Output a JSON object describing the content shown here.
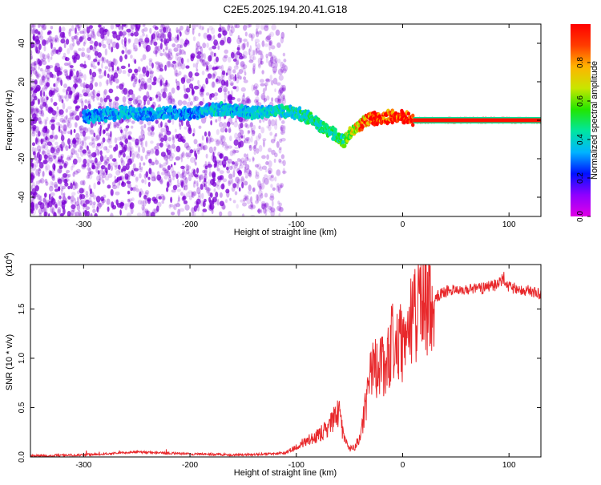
{
  "title": "C2E5.2025.194.20.41.G18",
  "colors": {
    "snr_line": "#e8282b",
    "frame": "#000000",
    "spectrogram_scatter": "#7b00d4",
    "colorbar_stops": [
      "#e100e6",
      "#8f00ff",
      "#0010ff",
      "#00b4ff",
      "#00e6a0",
      "#22e600",
      "#c8e600",
      "#ffb400",
      "#ff3c00",
      "#ff0000"
    ]
  },
  "chart_data": [
    {
      "type": "heatmap",
      "xlabel": "Height of straight line (km)",
      "ylabel": "Frequency (Hz)",
      "xlim": [
        -350,
        130
      ],
      "ylim": [
        -50,
        50
      ],
      "xticks": [
        -300,
        -200,
        -100,
        0,
        100
      ],
      "yticks": [
        -40,
        -20,
        0,
        20,
        40
      ],
      "xtick_labels": [
        "-300",
        "-200",
        "-100",
        "0",
        "100"
      ],
      "ytick_labels": [
        "-40",
        "-20",
        "0",
        "20",
        "40"
      ],
      "colorbar": {
        "label": "Normalized spectral amplitude",
        "range": [
          0,
          1
        ],
        "ticks": [
          "0.0",
          "0.2",
          "0.4",
          "0.6",
          "0.8"
        ],
        "tick_values": [
          0.0,
          0.2,
          0.4,
          0.6,
          0.8
        ]
      },
      "ridge": {
        "x": [
          -300,
          -280,
          -260,
          -240,
          -220,
          -200,
          -180,
          -160,
          -140,
          -120,
          -100,
          -90,
          -80,
          -70,
          -60,
          -55,
          -50,
          -45,
          -40,
          -35,
          -30,
          -20,
          -10,
          0,
          10,
          50,
          100,
          130
        ],
        "y": [
          2,
          3,
          4,
          3,
          4,
          3,
          6,
          5,
          4,
          5,
          4,
          2,
          -2,
          -5,
          -9,
          -11,
          -7,
          -5,
          -3,
          0,
          1,
          1,
          2,
          2,
          0,
          0,
          0,
          0
        ],
        "amplitude": [
          0.3,
          0.32,
          0.35,
          0.32,
          0.33,
          0.3,
          0.38,
          0.35,
          0.36,
          0.4,
          0.42,
          0.45,
          0.45,
          0.45,
          0.48,
          0.5,
          0.6,
          0.7,
          0.8,
          0.85,
          0.9,
          0.95,
          0.95,
          0.95,
          0.96,
          0.97,
          0.97,
          0.97
        ]
      },
      "noise_extent_x": [
        -350,
        -110
      ]
    },
    {
      "type": "line",
      "xlabel": "Height of straight line (km)",
      "ylabel": "SNR (10 * v/v)",
      "y_multiplier_label": "(x10",
      "y_multiplier_exp": "4",
      "xlim": [
        -350,
        130
      ],
      "ylim": [
        0,
        1.95
      ],
      "xticks": [
        -300,
        -200,
        -100,
        0,
        100
      ],
      "yticks": [
        0.0,
        0.5,
        1.0,
        1.5
      ],
      "xtick_labels": [
        "-300",
        "-200",
        "-100",
        "0",
        "100"
      ],
      "ytick_labels": [
        "0.0",
        "0.5",
        "1.0",
        "1.5"
      ],
      "series": [
        {
          "x": [
            -350,
            -300,
            -250,
            -200,
            -150,
            -110,
            -100,
            -90,
            -80,
            -70,
            -60,
            -55,
            -50,
            -45,
            -40,
            -35,
            -30,
            -25,
            -20,
            -15,
            -10,
            -5,
            0,
            5,
            10,
            15,
            20,
            25,
            30,
            40,
            50,
            60,
            70,
            80,
            90,
            95,
            100,
            110,
            120,
            130
          ],
          "values": [
            0.01,
            0.02,
            0.05,
            0.03,
            0.02,
            0.04,
            0.1,
            0.17,
            0.22,
            0.3,
            0.45,
            0.2,
            0.08,
            0.1,
            0.2,
            0.5,
            0.85,
            0.9,
            0.95,
            0.92,
            1.2,
            1.15,
            1.15,
            1.3,
            1.4,
            1.5,
            1.55,
            1.6,
            1.62,
            1.68,
            1.7,
            1.7,
            1.7,
            1.72,
            1.75,
            1.82,
            1.72,
            1.7,
            1.68,
            1.65
          ]
        }
      ]
    }
  ]
}
